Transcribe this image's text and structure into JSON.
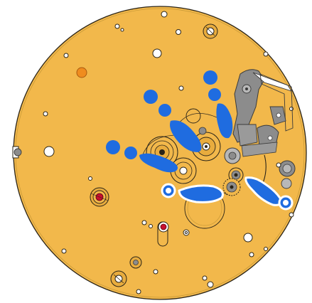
{
  "colors": {
    "plate": "#f2b84b",
    "plate_edge": "#2a2418",
    "indicator": "#1f6ce0",
    "jewel": "#c8102e",
    "accent_hole": "#f08c1e",
    "metal": "#8c8c8c"
  },
  "icons": {
    "movement": "watch-movement-diagram",
    "indicator": "blue-dot-marker"
  }
}
